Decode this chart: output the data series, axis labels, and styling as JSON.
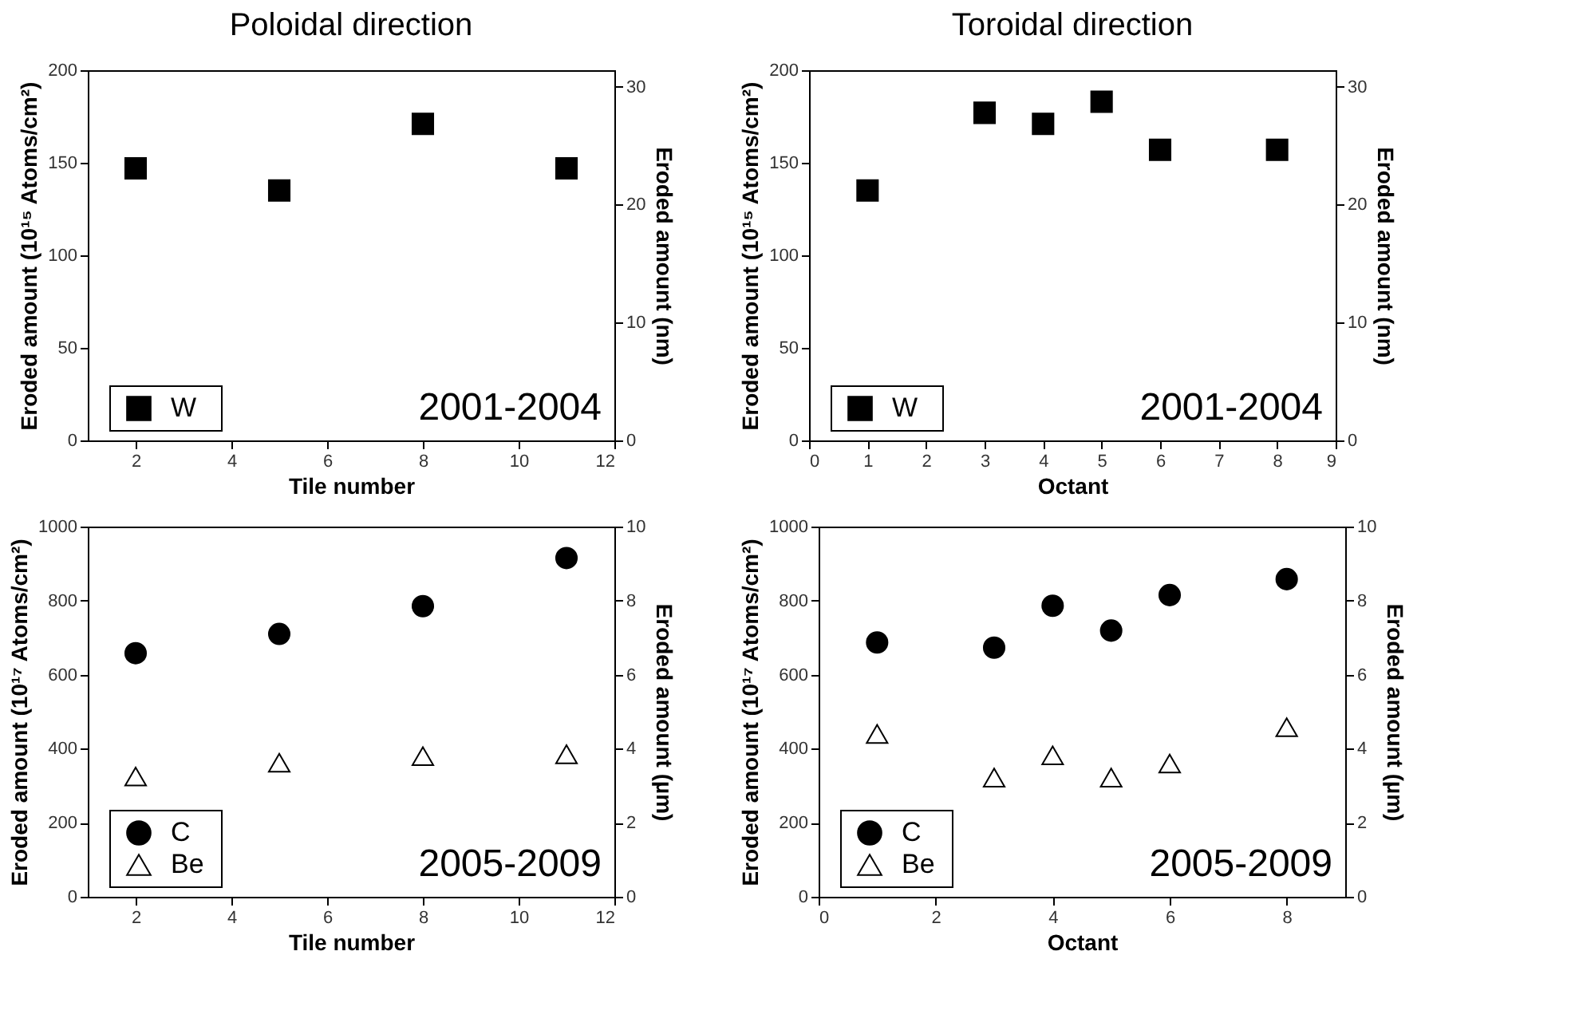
{
  "chart_data": [
    {
      "type": "scatter",
      "title": "Poloidal direction",
      "xlabel": "Tile number",
      "ylabel": "Eroded amount (10¹⁵ Atoms/cm²)",
      "y2label": "Eroded amount (nm)",
      "x": [
        2,
        5,
        8,
        11
      ],
      "series": [
        {
          "name": "W",
          "color": "#000000",
          "marker": "square",
          "values": [
            147,
            135,
            171,
            147
          ]
        }
      ],
      "xlim": [
        1,
        12
      ],
      "xticks": [
        2,
        4,
        6,
        8,
        10,
        12
      ],
      "ylim": [
        0,
        200
      ],
      "yticks": [
        0,
        50,
        100,
        150,
        200
      ],
      "y2lim": [
        0,
        31.4
      ],
      "y2ticks": [
        0,
        10,
        20,
        30
      ],
      "annotations": [
        "2001-2004"
      ],
      "legend": "bottom left",
      "grid": false
    },
    {
      "type": "scatter",
      "title": "Toroidal direction",
      "xlabel": "Octant",
      "ylabel": "Eroded amount (10¹⁵ Atoms/cm²)",
      "y2label": "Eroded amount (nm)",
      "x": [
        1,
        3,
        4,
        5,
        6,
        8
      ],
      "series": [
        {
          "name": "W",
          "color": "#000000",
          "marker": "square",
          "values": [
            135,
            177,
            171,
            183,
            157,
            157
          ]
        }
      ],
      "xlim": [
        0,
        9
      ],
      "xticks": [
        0,
        1,
        2,
        3,
        4,
        5,
        6,
        7,
        8,
        9
      ],
      "ylim": [
        0,
        200
      ],
      "yticks": [
        0,
        50,
        100,
        150,
        200
      ],
      "y2lim": [
        0,
        31.4
      ],
      "y2ticks": [
        0,
        10,
        20,
        30
      ],
      "annotations": [
        "2001-2004"
      ],
      "legend": "bottom left",
      "grid": false
    },
    {
      "type": "scatter",
      "xlabel": "Tile number",
      "ylabel": "Eroded amount (10¹⁷ Atoms/cm²)",
      "y2label": "Eroded amount (µm)",
      "x": [
        2,
        5,
        8,
        11
      ],
      "series": [
        {
          "name": "C",
          "color": "#000000",
          "marker": "circle",
          "values": [
            658,
            710,
            785,
            915
          ]
        },
        {
          "name": "Be",
          "color": "#000000",
          "marker": "triangle",
          "values": [
            325,
            362,
            380,
            385
          ]
        }
      ],
      "xlim": [
        1,
        12
      ],
      "xticks": [
        2,
        4,
        6,
        8,
        10,
        12
      ],
      "ylim": [
        0,
        1000
      ],
      "yticks": [
        0,
        200,
        400,
        600,
        800,
        1000
      ],
      "y2lim": [
        0,
        10
      ],
      "y2ticks": [
        0,
        2,
        4,
        6,
        8,
        10
      ],
      "annotations": [
        "2005-2009"
      ],
      "legend": "bottom left",
      "grid": false
    },
    {
      "type": "scatter",
      "xlabel": "Octant",
      "ylabel": "Eroded amount (10¹⁷ Atoms/cm²)",
      "y2label": "Eroded amount (µm)",
      "x": [
        1,
        3,
        4,
        5,
        6,
        8
      ],
      "series": [
        {
          "name": "C",
          "color": "#000000",
          "marker": "circle",
          "values": [
            687,
            673,
            786,
            719,
            815,
            858
          ]
        },
        {
          "name": "Be",
          "color": "#000000",
          "marker": "triangle",
          "values": [
            440,
            322,
            382,
            322,
            360,
            458
          ]
        }
      ],
      "xlim": [
        0,
        9
      ],
      "xticks": [
        0,
        2,
        4,
        6,
        8
      ],
      "ylim": [
        0,
        1000
      ],
      "yticks": [
        0,
        200,
        400,
        600,
        800,
        1000
      ],
      "y2lim": [
        0,
        10
      ],
      "y2ticks": [
        0,
        2,
        4,
        6,
        8,
        10
      ],
      "annotations": [
        "2005-2009"
      ],
      "legend": "bottom left",
      "grid": false
    }
  ]
}
